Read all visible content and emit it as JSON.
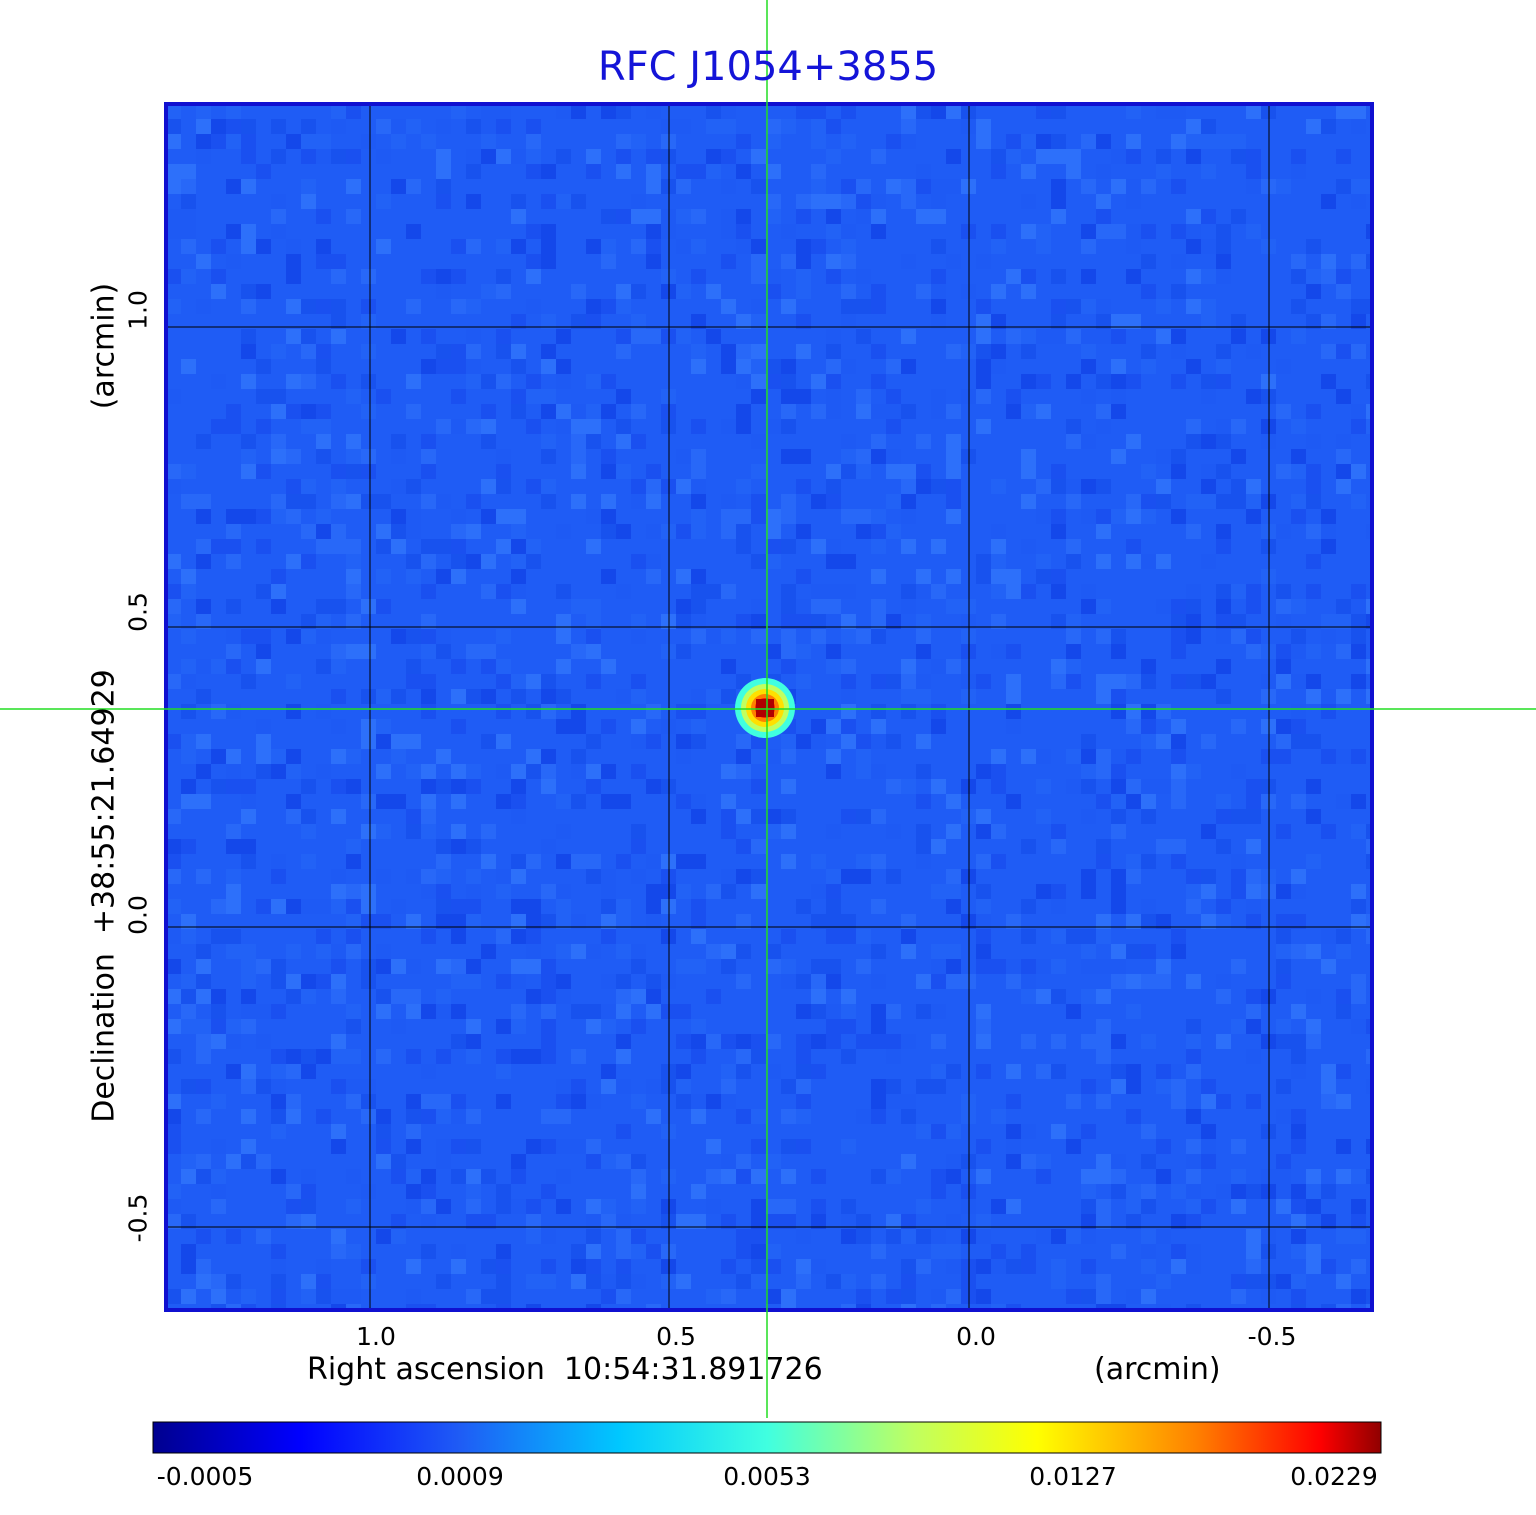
{
  "title": "RFC J1054+3855",
  "x_axis": {
    "label": "Right ascension  10:54:31.891726",
    "unit": "(arcmin)",
    "ticks": [
      "1.0",
      "0.5",
      "0.0",
      "-0.5"
    ]
  },
  "y_axis": {
    "label": "Declination  +38:55:21.64929",
    "unit": "(arcmin)",
    "ticks": [
      "1.0",
      "0.5",
      "0.0",
      "-0.5"
    ]
  },
  "colorbar": {
    "ticks": [
      "-0.0005",
      "0.0009",
      "0.0053",
      "0.0127",
      "0.0229"
    ]
  },
  "colors": {
    "title": "#1414d8",
    "frame": "#1010d0",
    "background_map": "#1f5cf5",
    "crosshair": "#22dd22",
    "grid": "#000000"
  }
}
